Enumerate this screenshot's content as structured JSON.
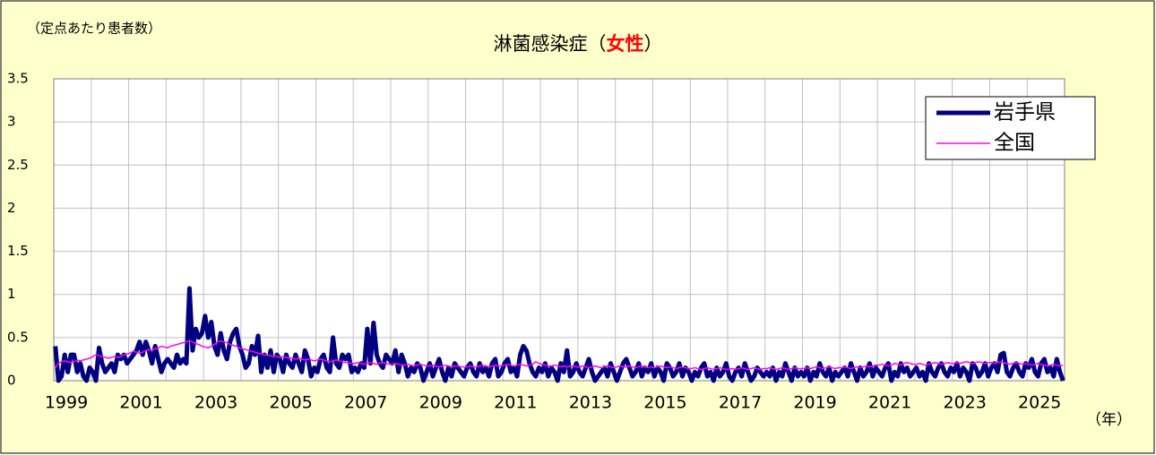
{
  "chart_data": {
    "type": "line",
    "title": [
      "淋菌感染症（",
      "女性",
      "）"
    ],
    "title_emphasis_color": "#ff0000",
    "y_axis_label": "（定点あたり患者数）",
    "x_axis_label": "（年）",
    "categories": [
      "1999",
      null,
      null,
      null,
      null,
      null,
      null,
      null,
      null,
      null,
      null,
      null,
      null,
      null,
      null,
      null,
      null,
      null,
      null,
      null,
      null,
      null,
      null,
      null,
      "2001",
      null,
      null,
      null,
      null,
      null,
      null,
      null,
      null,
      null,
      null,
      null,
      null,
      null,
      null,
      null,
      null,
      null,
      null,
      null,
      null,
      null,
      null,
      null,
      "2003",
      null,
      null,
      null,
      null,
      null,
      null,
      null,
      null,
      null,
      null,
      null,
      null,
      null,
      null,
      null,
      null,
      null,
      null,
      null,
      null,
      null,
      null,
      null,
      "2005",
      null,
      null,
      null,
      null,
      null,
      null,
      null,
      null,
      null,
      null,
      null,
      null,
      null,
      null,
      null,
      null,
      null,
      null,
      null,
      null,
      null,
      null,
      null,
      "2007",
      null,
      null,
      null,
      null,
      null,
      null,
      null,
      null,
      null,
      null,
      null,
      null,
      null,
      null,
      null,
      null,
      null,
      null,
      null,
      null,
      null,
      null,
      null,
      "2009",
      null,
      null,
      null,
      null,
      null,
      null,
      null,
      null,
      null,
      null,
      null,
      null,
      null,
      null,
      null,
      null,
      null,
      null,
      null,
      null,
      null,
      null,
      null,
      "2011",
      null,
      null,
      null,
      null,
      null,
      null,
      null,
      null,
      null,
      null,
      null,
      null,
      null,
      null,
      null,
      null,
      null,
      null,
      null,
      null,
      null,
      null,
      null,
      "2013",
      null,
      null,
      null,
      null,
      null,
      null,
      null,
      null,
      null,
      null,
      null,
      null,
      null,
      null,
      null,
      null,
      null,
      null,
      null,
      null,
      null,
      null,
      null,
      "2015",
      null,
      null,
      null,
      null,
      null,
      null,
      null,
      null,
      null,
      null,
      null,
      null,
      null,
      null,
      null,
      null,
      null,
      null,
      null,
      null,
      null,
      null,
      null,
      "2017",
      null,
      null,
      null,
      null,
      null,
      null,
      null,
      null,
      null,
      null,
      null,
      null,
      null,
      null,
      null,
      null,
      null,
      null,
      null,
      null,
      null,
      null,
      null,
      "2019",
      null,
      null,
      null,
      null,
      null,
      null,
      null,
      null,
      null,
      null,
      null,
      null,
      null,
      null,
      null,
      null,
      null,
      null,
      null,
      null,
      null,
      null,
      null,
      "2021",
      null,
      null,
      null,
      null,
      null,
      null,
      null,
      null,
      null,
      null,
      null,
      null,
      null,
      null,
      null,
      null,
      null,
      null,
      null,
      null,
      null,
      null,
      null,
      "2023",
      null,
      null,
      null,
      null,
      null,
      null,
      null,
      null,
      null,
      null,
      null,
      null,
      null,
      null,
      null,
      null,
      null,
      null,
      null,
      null,
      null,
      null,
      null,
      "2025",
      null,
      null,
      null,
      null,
      null,
      null,
      null,
      null,
      null,
      null,
      null
    ],
    "series": [
      {
        "name": "岩手県",
        "color": "#000080",
        "values": [
          0.4,
          0,
          0.05,
          0.3,
          0.1,
          0.3,
          0.3,
          0.1,
          0.2,
          0.05,
          0,
          0.15,
          0.1,
          0,
          0.38,
          0.2,
          0.1,
          0.15,
          0.2,
          0.1,
          0.3,
          0.25,
          0.3,
          0.2,
          0.25,
          0.3,
          0.35,
          0.45,
          0.3,
          0.45,
          0.35,
          0.2,
          0.4,
          0.25,
          0.1,
          0.2,
          0.25,
          0.2,
          0.15,
          0.3,
          0.2,
          0.25,
          0.2,
          1.07,
          0.35,
          0.6,
          0.5,
          0.55,
          0.75,
          0.5,
          0.68,
          0.4,
          0.3,
          0.55,
          0.35,
          0.25,
          0.45,
          0.55,
          0.6,
          0.4,
          0.3,
          0.15,
          0.2,
          0.4,
          0.3,
          0.52,
          0.1,
          0.3,
          0.15,
          0.35,
          0.1,
          0.3,
          0.25,
          0.1,
          0.3,
          0.2,
          0.15,
          0.3,
          0.2,
          0.1,
          0.35,
          0.25,
          0.05,
          0.15,
          0.1,
          0.25,
          0.3,
          0.15,
          0.1,
          0.5,
          0.2,
          0.15,
          0.3,
          0.25,
          0.3,
          0.1,
          0.15,
          0.1,
          0.2,
          0.15,
          0.6,
          0.2,
          0.67,
          0.3,
          0.2,
          0.15,
          0.3,
          0.25,
          0.2,
          0.35,
          0.1,
          0.3,
          0.2,
          0.05,
          0.15,
          0.1,
          0.2,
          0.15,
          0,
          0.1,
          0.2,
          0.05,
          0.15,
          0.25,
          0.1,
          0,
          0.15,
          0.05,
          0.2,
          0.15,
          0.1,
          0.05,
          0.15,
          0.2,
          0.1,
          0.05,
          0.2,
          0.1,
          0.15,
          0.05,
          0.2,
          0.25,
          0.05,
          0.1,
          0.2,
          0.25,
          0.1,
          0.15,
          0.05,
          0.3,
          0.4,
          0.35,
          0.2,
          0.1,
          0.05,
          0.15,
          0.1,
          0.2,
          0.05,
          0.15,
          0.1,
          0,
          0.2,
          0.1,
          0.35,
          0.05,
          0.1,
          0.2,
          0.1,
          0.05,
          0.15,
          0.25,
          0.1,
          0,
          0.05,
          0.1,
          0.15,
          0.05,
          0.2,
          0.1,
          0,
          0.1,
          0.2,
          0.25,
          0.15,
          0.05,
          0.1,
          0.2,
          0.05,
          0.15,
          0.1,
          0.2,
          0.05,
          0.15,
          0.1,
          0,
          0.2,
          0.15,
          0.05,
          0.1,
          0.2,
          0.05,
          0.15,
          0.1,
          0,
          0.1,
          0.05,
          0.15,
          0.2,
          0.05,
          0.1,
          0,
          0.15,
          0.05,
          0.1,
          0.2,
          0.05,
          0,
          0.1,
          0.15,
          0.05,
          0.2,
          0.1,
          0,
          0.05,
          0.15,
          0.1,
          0.05,
          0.1,
          0.05,
          0.15,
          0,
          0.1,
          0.05,
          0.2,
          0.1,
          0,
          0.15,
          0.05,
          0.1,
          0.05,
          0.15,
          0,
          0.1,
          0.05,
          0.2,
          0.1,
          0.05,
          0.15,
          0,
          0.1,
          0.05,
          0.1,
          0.15,
          0.05,
          0.2,
          0.1,
          0,
          0.15,
          0.05,
          0.1,
          0.2,
          0.05,
          0.15,
          0.1,
          0.05,
          0.15,
          0.2,
          0,
          0.1,
          0.05,
          0.2,
          0.1,
          0.15,
          0.05,
          0.1,
          0.15,
          0.05,
          0.1,
          0,
          0.2,
          0.1,
          0.05,
          0.15,
          0.2,
          0.1,
          0.05,
          0.15,
          0.1,
          0.2,
          0.05,
          0.15,
          0.1,
          0,
          0.2,
          0.15,
          0.05,
          0.1,
          0.2,
          0.05,
          0.15,
          0.2,
          0.1,
          0.3,
          0.32,
          0.1,
          0.05,
          0.15,
          0.2,
          0.1,
          0.05,
          0.2,
          0.15,
          0.25,
          0.1,
          0.05,
          0.2,
          0.25,
          0.1,
          0.15,
          0.05,
          0.25,
          0.1,
          0
        ]
      },
      {
        "name": "全国",
        "color": "#ff00ff",
        "values": [
          0.15,
          0.2,
          0.22,
          0.23,
          0.22,
          0.21,
          0.22,
          0.24,
          0.23,
          0.24,
          0.25,
          0.26,
          0.28,
          0.3,
          0.29,
          0.28,
          0.27,
          0.26,
          0.27,
          0.28,
          0.27,
          0.28,
          0.3,
          0.31,
          0.32,
          0.34,
          0.33,
          0.32,
          0.33,
          0.35,
          0.36,
          0.35,
          0.37,
          0.38,
          0.4,
          0.39,
          0.38,
          0.4,
          0.41,
          0.42,
          0.43,
          0.44,
          0.45,
          0.46,
          0.45,
          0.43,
          0.42,
          0.4,
          0.39,
          0.38,
          0.4,
          0.42,
          0.45,
          0.46,
          0.45,
          0.44,
          0.42,
          0.41,
          0.4,
          0.38,
          0.37,
          0.36,
          0.35,
          0.34,
          0.33,
          0.32,
          0.31,
          0.3,
          0.3,
          0.29,
          0.28,
          0.28,
          0.27,
          0.28,
          0.27,
          0.26,
          0.26,
          0.25,
          0.26,
          0.25,
          0.24,
          0.25,
          0.24,
          0.23,
          0.24,
          0.25,
          0.24,
          0.23,
          0.22,
          0.23,
          0.24,
          0.23,
          0.22,
          0.21,
          0.21,
          0.2,
          0.2,
          0.21,
          0.2,
          0.19,
          0.2,
          0.21,
          0.2,
          0.19,
          0.2,
          0.21,
          0.2,
          0.19,
          0.19,
          0.2,
          0.19,
          0.18,
          0.18,
          0.19,
          0.18,
          0.17,
          0.18,
          0.19,
          0.18,
          0.17,
          0.17,
          0.18,
          0.17,
          0.16,
          0.17,
          0.18,
          0.17,
          0.16,
          0.17,
          0.17,
          0.16,
          0.16,
          0.16,
          0.17,
          0.16,
          0.16,
          0.17,
          0.18,
          0.17,
          0.16,
          0.17,
          0.18,
          0.17,
          0.17,
          0.18,
          0.19,
          0.18,
          0.17,
          0.18,
          0.19,
          0.18,
          0.17,
          0.18,
          0.19,
          0.22,
          0.2,
          0.19,
          0.18,
          0.17,
          0.17,
          0.18,
          0.17,
          0.16,
          0.17,
          0.16,
          0.17,
          0.17,
          0.16,
          0.16,
          0.17,
          0.16,
          0.15,
          0.16,
          0.17,
          0.16,
          0.15,
          0.16,
          0.17,
          0.16,
          0.15,
          0.16,
          0.17,
          0.16,
          0.16,
          0.17,
          0.16,
          0.15,
          0.16,
          0.17,
          0.16,
          0.15,
          0.16,
          0.15,
          0.16,
          0.17,
          0.16,
          0.15,
          0.16,
          0.15,
          0.14,
          0.15,
          0.16,
          0.15,
          0.14,
          0.14,
          0.15,
          0.14,
          0.13,
          0.14,
          0.15,
          0.14,
          0.13,
          0.14,
          0.15,
          0.14,
          0.13,
          0.13,
          0.14,
          0.13,
          0.14,
          0.15,
          0.14,
          0.13,
          0.14,
          0.15,
          0.14,
          0.13,
          0.14,
          0.14,
          0.15,
          0.14,
          0.13,
          0.14,
          0.15,
          0.14,
          0.13,
          0.14,
          0.15,
          0.14,
          0.14,
          0.14,
          0.15,
          0.14,
          0.15,
          0.16,
          0.15,
          0.14,
          0.15,
          0.16,
          0.15,
          0.14,
          0.15,
          0.15,
          0.16,
          0.15,
          0.14,
          0.15,
          0.16,
          0.15,
          0.16,
          0.17,
          0.16,
          0.17,
          0.18,
          0.18,
          0.19,
          0.18,
          0.17,
          0.18,
          0.2,
          0.19,
          0.18,
          0.2,
          0.21,
          0.2,
          0.19,
          0.19,
          0.2,
          0.19,
          0.18,
          0.19,
          0.2,
          0.21,
          0.2,
          0.19,
          0.2,
          0.21,
          0.2,
          0.2,
          0.21,
          0.2,
          0.21,
          0.22,
          0.21,
          0.2,
          0.21,
          0.22,
          0.21,
          0.2,
          0.21,
          0.21,
          0.2,
          0.21,
          0.22,
          0.21,
          0.2,
          0.19,
          0.2,
          0.21,
          0.2,
          0.19,
          0.2,
          0.19,
          0.18,
          0.19,
          0.2,
          0.19,
          0.18,
          0.17,
          0.18,
          0.19,
          0.18,
          0.17,
          0.18
        ]
      }
    ],
    "ylim": [
      0,
      3.5
    ],
    "yticks": [
      0,
      0.5,
      1,
      1.5,
      2,
      2.5,
      3,
      3.5
    ],
    "grid": true,
    "legend": "upper right"
  }
}
